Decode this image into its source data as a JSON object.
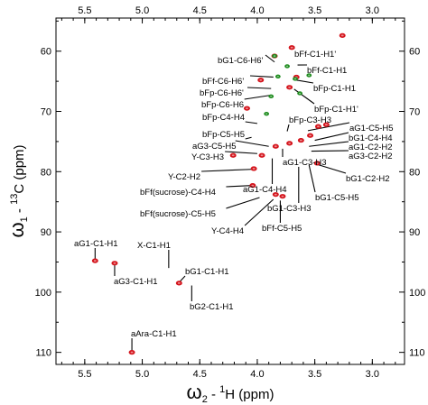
{
  "chart_data": {
    "type": "scatter",
    "xlabel": {
      "omega": "ω",
      "sub": "2",
      "rest": " - ",
      "sup": "1",
      "nucleus": "H",
      "unit": "  (ppm)"
    },
    "ylabel": {
      "omega": "ω",
      "sub": "1",
      "rest": " - ",
      "sup": "13",
      "nucleus": "C",
      "unit": "  (ppm)"
    },
    "x_reversed": true,
    "y_reversed": true,
    "xlim": [
      5.75,
      2.72
    ],
    "ylim": [
      54.5,
      112
    ],
    "x_ticks": [
      "5.5",
      "5.0",
      "4.5",
      "4.0",
      "3.5",
      "3.0"
    ],
    "y_ticks": [
      "60",
      "70",
      "80",
      "90",
      "100",
      "110"
    ],
    "grid": false,
    "series": [
      {
        "color": "#d4141c",
        "points": [
          {
            "x": 5.41,
            "y": 94.8
          },
          {
            "x": 5.24,
            "y": 95.2
          },
          {
            "x": 4.68,
            "y": 98.5
          },
          {
            "x": 5.09,
            "y": 110.0
          },
          {
            "x": 4.03,
            "y": 79.5
          },
          {
            "x": 4.21,
            "y": 77.3
          },
          {
            "x": 3.84,
            "y": 83.8
          },
          {
            "x": 3.78,
            "y": 84.1
          },
          {
            "x": 3.84,
            "y": 75.8
          },
          {
            "x": 3.72,
            "y": 75.3
          },
          {
            "x": 3.62,
            "y": 74.8
          },
          {
            "x": 3.47,
            "y": 72.5
          },
          {
            "x": 3.4,
            "y": 72.2
          },
          {
            "x": 3.54,
            "y": 74.0
          },
          {
            "x": 3.48,
            "y": 78.6
          },
          {
            "x": 3.26,
            "y": 57.4
          },
          {
            "x": 3.7,
            "y": 59.4
          },
          {
            "x": 3.85,
            "y": 60.8
          },
          {
            "x": 3.66,
            "y": 64.3
          },
          {
            "x": 3.97,
            "y": 64.8
          },
          {
            "x": 3.72,
            "y": 66.0
          },
          {
            "x": 3.96,
            "y": 77.3
          },
          {
            "x": 4.04,
            "y": 82.3
          },
          {
            "x": 4.09,
            "y": 69.5
          }
        ]
      },
      {
        "color": "#1e8c1e",
        "points": [
          {
            "x": 3.85,
            "y": 60.8
          },
          {
            "x": 3.82,
            "y": 64.2
          },
          {
            "x": 3.67,
            "y": 64.6
          },
          {
            "x": 3.88,
            "y": 67.5
          },
          {
            "x": 3.63,
            "y": 67.0
          },
          {
            "x": 3.74,
            "y": 62.5
          },
          {
            "x": 3.92,
            "y": 70.4
          },
          {
            "x": 3.55,
            "y": 64.0
          }
        ]
      }
    ],
    "annotations": [
      {
        "label": "bG1-C6-H6'",
        "x": 3.85,
        "y": 61.8
      },
      {
        "label": "bFf-C1-H1'",
        "x": 3.68,
        "y": 59.2
      },
      {
        "label": "bFf-C1-H1",
        "x": 3.65,
        "y": 62.3
      },
      {
        "label": "bFf-C6-H6'",
        "x": 3.86,
        "y": 64.3
      },
      {
        "label": "bFp-C6-H6'",
        "x": 3.88,
        "y": 66.2
      },
      {
        "label": "bFp-C1-H1",
        "x": 3.66,
        "y": 64.8
      },
      {
        "label": "bFp-C6-H6",
        "x": 3.88,
        "y": 67.3
      },
      {
        "label": "bFp-C1-H1'",
        "x": 3.68,
        "y": 66.3
      },
      {
        "label": "bFp-C4-H4",
        "x": 4.0,
        "y": 72.0
      },
      {
        "label": "bFp-C3-H3",
        "x": 3.74,
        "y": 73.3
      },
      {
        "label": "aG1-C5-H5",
        "x": 3.56,
        "y": 73.2
      },
      {
        "label": "bFp-C5-H5",
        "x": 4.05,
        "y": 74.3
      },
      {
        "label": "bG1-C4-H4",
        "x": 3.5,
        "y": 74.8
      },
      {
        "label": "aG3-C5-H5",
        "x": 3.9,
        "y": 75.8
      },
      {
        "label": "aG1-C2-H2",
        "x": 3.55,
        "y": 75.8
      },
      {
        "label": "aG3-C2-H2",
        "x": 3.53,
        "y": 76.6
      },
      {
        "label": "Y-C3-H3",
        "x": 4.0,
        "y": 77.0
      },
      {
        "label": "aG1-C3-H3",
        "x": 3.78,
        "y": 76.2
      },
      {
        "label": "Y-C2-H2",
        "x": 4.03,
        "y": 79.6
      },
      {
        "label": "bG1-C2-H2",
        "x": 3.48,
        "y": 78.8
      },
      {
        "label": "aG1-C4-H4",
        "x": 3.87,
        "y": 77.8
      },
      {
        "label": "bFf(sucrose)-C4-H4",
        "x": 4.05,
        "y": 82.3
      },
      {
        "label": "bG1-C5-H5",
        "x": 3.55,
        "y": 78.9
      },
      {
        "label": "bG1-C3-H3",
        "x": 3.64,
        "y": 79.2
      },
      {
        "label": "bFf(sucrose)-C5-H5",
        "x": 3.98,
        "y": 84.3
      },
      {
        "label": "Y-C4-H4",
        "x": 3.86,
        "y": 84.6
      },
      {
        "label": "bFf-C5-H5",
        "x": 3.8,
        "y": 84.8
      },
      {
        "label": "aG1-C1-H1",
        "x": 5.41,
        "y": 94.8
      },
      {
        "label": "X-C1-H1",
        "x": 4.77,
        "y": 96.0
      },
      {
        "label": "aG3-C1-H1",
        "x": 5.24,
        "y": 95.3
      },
      {
        "label": "bG1-C1-H1",
        "x": 4.68,
        "y": 98.4
      },
      {
        "label": "bG2-C1-H1",
        "x": 4.57,
        "y": 98.9
      },
      {
        "label": "aAra-C1-H1",
        "x": 5.09,
        "y": 110.0
      }
    ]
  }
}
